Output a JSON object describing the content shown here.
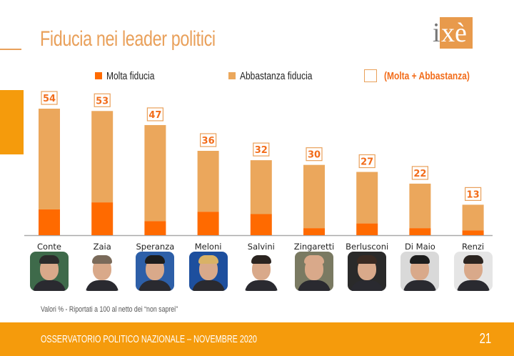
{
  "header": {
    "title": "Fiducia nei leader politici",
    "logo_text_i": "i",
    "logo_text_xe": "xè"
  },
  "legend": {
    "molta": "Molta fiducia",
    "abbastanza": "Abbastanza fiducia",
    "totale": "(Molta + Abbastanza)"
  },
  "colors": {
    "molta": "#ff6a00",
    "abbastanza": "#eba75c",
    "label_border": "#e9a05a",
    "label_text": "#f26c1a",
    "accent": "#f59b0c",
    "axis": "#aaaaaa"
  },
  "chart_data": {
    "type": "bar",
    "stacked": true,
    "title": "Fiducia nei leader politici",
    "xlabel": "",
    "ylabel": "",
    "ylim": [
      0,
      60
    ],
    "legend_position": "top",
    "categories": [
      "Conte",
      "Zaia",
      "Speranza",
      "Meloni",
      "Salvini",
      "Zingaretti",
      "Berlusconi",
      "Di Maio",
      "Renzi"
    ],
    "series": [
      {
        "name": "Molta fiducia",
        "values": [
          11,
          14,
          6,
          10,
          9,
          3,
          5,
          3,
          2
        ]
      },
      {
        "name": "Abbastanza fiducia",
        "values": [
          43,
          39,
          41,
          26,
          23,
          27,
          22,
          19,
          11
        ]
      }
    ],
    "totals": [
      54,
      53,
      47,
      36,
      32,
      30,
      27,
      22,
      13
    ],
    "total_label": "(Molta + Abbastanza)"
  },
  "photos": [
    {
      "name": "conte-photo",
      "bg": "#3e6a4a",
      "hair": "#2b2b2b"
    },
    {
      "name": "zaia-photo",
      "bg": "#ffffff",
      "hair": "#7a6a5a"
    },
    {
      "name": "speranza-photo",
      "bg": "#2d5fa8",
      "hair": "#1d1d1d"
    },
    {
      "name": "meloni-photo",
      "bg": "#1d4f9e",
      "hair": "#d9b266"
    },
    {
      "name": "salvini-photo",
      "bg": "#ffffff",
      "hair": "#2b2420"
    },
    {
      "name": "zingaretti-photo",
      "bg": "#7a7a62",
      "hair": "#d9a98a"
    },
    {
      "name": "berlusconi-photo",
      "bg": "#2a2a2a",
      "hair": "#3a2a22"
    },
    {
      "name": "dimaio-photo",
      "bg": "#d9d9d9",
      "hair": "#1d1d1d"
    },
    {
      "name": "renzi-photo",
      "bg": "#e5e5e5",
      "hair": "#2b2420"
    }
  ],
  "note": "Valori % - Riportati a 100 al netto dei “non saprei”",
  "footer": {
    "text": "OSSERVATORIO POLITICO NAZIONALE – NOVEMBRE 2020",
    "page": "21"
  }
}
